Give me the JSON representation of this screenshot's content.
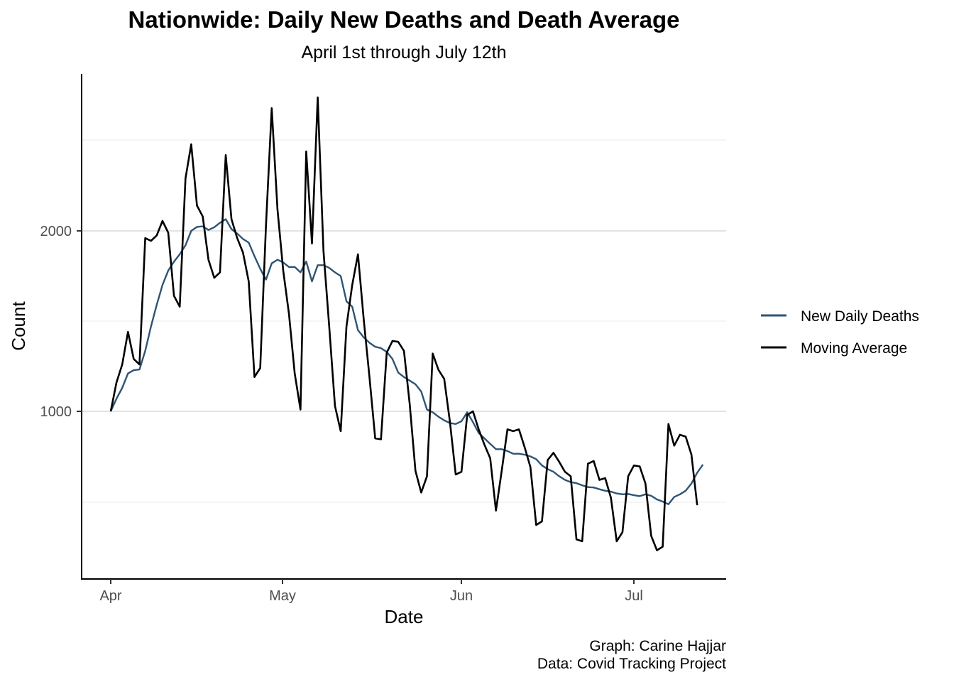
{
  "chart_data": {
    "type": "line",
    "title": "Nationwide: Daily New Deaths and Death Average",
    "subtitle": "April 1st through July 12th",
    "xlabel": "Date",
    "ylabel": "Count",
    "x_tick_labels": [
      "Apr",
      "May",
      "Jun",
      "Jul"
    ],
    "y_tick_labels": [
      "1000",
      "2000"
    ],
    "xlim": [
      "2020-03-27",
      "2020-07-16"
    ],
    "ylim": [
      130,
      2900
    ],
    "grid": "horizontal",
    "legend_position": "right",
    "caption": [
      "Graph: Carine Hajjar",
      "Data: Covid Tracking Project"
    ],
    "start_date": "2020-04-01",
    "series": [
      {
        "name": "New Daily Deaths",
        "color": "#2e5475",
        "values": [
          1000,
          1070,
          1130,
          1210,
          1228,
          1232,
          1335,
          1470,
          1590,
          1700,
          1780,
          1830,
          1870,
          1920,
          2000,
          2022,
          2025,
          2005,
          2020,
          2045,
          2065,
          2010,
          1985,
          1955,
          1935,
          1860,
          1790,
          1730,
          1820,
          1840,
          1825,
          1800,
          1800,
          1770,
          1830,
          1720,
          1810,
          1810,
          1795,
          1770,
          1750,
          1610,
          1580,
          1450,
          1410,
          1380,
          1358,
          1350,
          1330,
          1290,
          1215,
          1190,
          1170,
          1150,
          1110,
          1010,
          995,
          970,
          950,
          935,
          930,
          945,
          995,
          940,
          880,
          850,
          820,
          790,
          790,
          780,
          765,
          765,
          760,
          750,
          735,
          700,
          680,
          665,
          640,
          620,
          608,
          602,
          590,
          580,
          578,
          568,
          560,
          555,
          545,
          540,
          542,
          535,
          530,
          540,
          532,
          512,
          500,
          485,
          525,
          540,
          560,
          600,
          660,
          705
        ]
      },
      {
        "name": "Moving Average",
        "color": "#000000",
        "values": [
          1000,
          1160,
          1260,
          1440,
          1290,
          1260,
          1960,
          1945,
          1975,
          2055,
          1990,
          1640,
          1580,
          2290,
          2480,
          2140,
          2080,
          1840,
          1740,
          1770,
          2420,
          2065,
          1960,
          1880,
          1720,
          1190,
          1240,
          2030,
          2680,
          2120,
          1780,
          1540,
          1210,
          1010,
          2440,
          1930,
          2740,
          1890,
          1470,
          1030,
          890,
          1470,
          1700,
          1870,
          1510,
          1190,
          850,
          845,
          1325,
          1390,
          1385,
          1335,
          1040,
          670,
          550,
          640,
          1320,
          1230,
          1180,
          940,
          650,
          665,
          980,
          1000,
          900,
          815,
          740,
          450,
          670,
          900,
          890,
          900,
          800,
          690,
          370,
          390,
          730,
          770,
          720,
          665,
          640,
          290,
          280,
          710,
          725,
          620,
          630,
          520,
          280,
          330,
          640,
          700,
          695,
          600,
          310,
          230,
          250,
          930,
          810,
          870,
          860,
          760,
          480
        ]
      }
    ]
  }
}
